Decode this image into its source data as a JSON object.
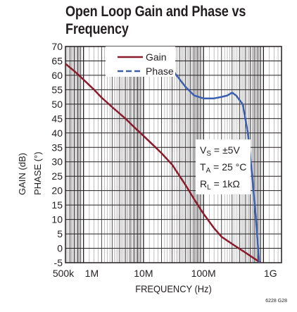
{
  "title_line1": "Open Loop Gain and Phase vs",
  "title_line2": "Frequency",
  "ylabel_gain": "GAIN (dB)",
  "ylabel_phase": "PHASE (°)",
  "xlabel": "FREQUENCY  (Hz)",
  "figure_note": "6228 G28",
  "conditions": {
    "vs": "V",
    "vs_sub": "S",
    "vs_val": " = ±5V",
    "ta": "T",
    "ta_sub": "A",
    "ta_val": " = 25 °C",
    "rl": "R",
    "rl_sub": "L",
    "rl_val": " = 1kΩ"
  },
  "colors": {
    "gain": "#8b1a2b",
    "phase": "#3a5fb0",
    "grid": "#231f20"
  },
  "chart_data": {
    "type": "line",
    "title": "Open Loop Gain and Phase vs Frequency",
    "xlabel": "FREQUENCY (Hz)",
    "ylabel": "GAIN (dB) / PHASE (°)",
    "x_scale": "log",
    "xlim": [
      500000,
      2000000000
    ],
    "ylim": [
      -5,
      70
    ],
    "yticks": [
      -5,
      0,
      5,
      10,
      15,
      20,
      25,
      30,
      35,
      40,
      45,
      50,
      55,
      60,
      65,
      70
    ],
    "ytick_labels": [
      "-5",
      "0",
      "5",
      "10",
      "15",
      "20",
      "25",
      "30",
      "35",
      "40",
      "45",
      "50",
      "55",
      "60",
      "65",
      "70"
    ],
    "xticks": [
      500000,
      1000000,
      10000000,
      100000000,
      1000000000
    ],
    "xtick_labels": [
      "500k",
      "1M",
      "10M",
      "100M",
      "1G"
    ],
    "grid": true,
    "legend_position": "top-left",
    "series": [
      {
        "name": "Gain",
        "color": "#8b1a2b",
        "dash": "solid",
        "x": [
          500000,
          700000,
          1000000,
          1500000,
          2000000,
          3000000,
          5000000,
          7000000,
          10000000,
          15000000,
          20000000,
          30000000,
          50000000,
          70000000,
          100000000,
          150000000,
          200000000,
          300000000,
          500000000,
          700000000,
          900000000
        ],
        "values": [
          64,
          61.5,
          58.5,
          55,
          52.3,
          49,
          45,
          42,
          39,
          35.5,
          33,
          29,
          22,
          17,
          12,
          7,
          4,
          1.5,
          -1.5,
          -3.5,
          -5
        ]
      },
      {
        "name": "Phase",
        "color": "#3a5fb0",
        "dash": "dashed",
        "x": [
          10000000,
          20000000,
          30000000,
          50000000,
          70000000,
          100000000,
          150000000,
          200000000,
          250000000,
          300000000,
          350000000,
          450000000,
          550000000,
          650000000,
          750000000,
          850000000
        ],
        "values": [
          71,
          66,
          62,
          56,
          53,
          52,
          52,
          52.5,
          53,
          54,
          53,
          50,
          40,
          25,
          10,
          -5
        ]
      }
    ]
  }
}
